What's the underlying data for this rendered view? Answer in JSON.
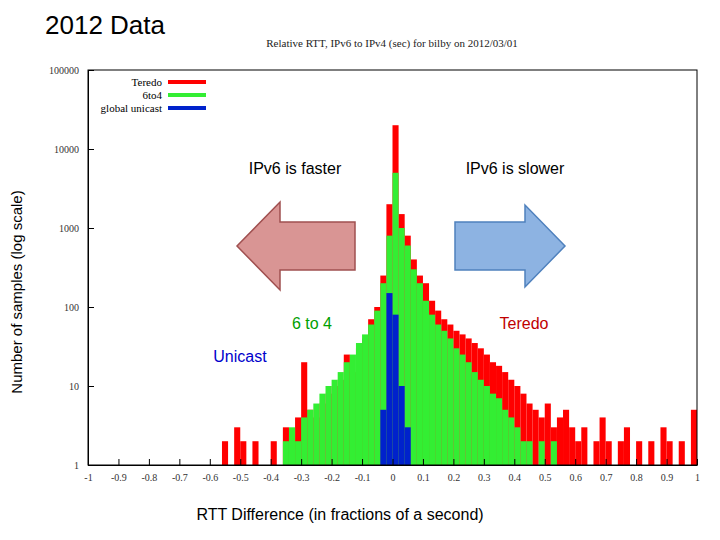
{
  "chart_data": {
    "type": "histogram",
    "title": "2012 Data",
    "subtitle": "Relative RTT, IPv6 to IPv4 (sec) for bilby on 2012/03/01",
    "x_label": "RTT Difference (in fractions of a second)",
    "y_label": "Number of samples (log scale)",
    "annotations": [
      "IPv6 is faster",
      "IPv6 is slower",
      "6 to 4",
      "Teredo",
      "Unicast"
    ],
    "log": "y",
    "grid": false,
    "legend": "top-left",
    "xlim": [
      -1,
      1
    ],
    "xticks": [
      -1,
      -0.9,
      -0.8,
      -0.7,
      -0.6,
      -0.5,
      -0.4,
      -0.3,
      -0.2,
      -0.1,
      0,
      0.1,
      0.2,
      0.3,
      0.4,
      0.5,
      0.6,
      0.7,
      0.8,
      0.9,
      1
    ],
    "ylim": [
      1,
      100000
    ],
    "yticks": [
      1,
      10,
      100,
      1000,
      10000,
      100000
    ],
    "bins": [
      -1,
      -0.98,
      -0.96,
      -0.94,
      -0.92,
      -0.9,
      -0.88,
      -0.86,
      -0.84,
      -0.82,
      -0.8,
      -0.78,
      -0.76,
      -0.74,
      -0.72,
      -0.7,
      -0.68,
      -0.66,
      -0.64,
      -0.62,
      -0.6,
      -0.58,
      -0.56,
      -0.54,
      -0.52,
      -0.5,
      -0.48,
      -0.46,
      -0.44,
      -0.42,
      -0.4,
      -0.38,
      -0.36,
      -0.34,
      -0.32,
      -0.3,
      -0.28,
      -0.26,
      -0.24,
      -0.22,
      -0.2,
      -0.18,
      -0.16,
      -0.14,
      -0.12,
      -0.1,
      -0.08,
      -0.06,
      -0.04,
      -0.02,
      0,
      0.02,
      0.04,
      0.06,
      0.08,
      0.1,
      0.12,
      0.14,
      0.16,
      0.18,
      0.2,
      0.22,
      0.24,
      0.26,
      0.28,
      0.3,
      0.32,
      0.34,
      0.36,
      0.38,
      0.4,
      0.42,
      0.44,
      0.46,
      0.48,
      0.5,
      0.52,
      0.54,
      0.56,
      0.58,
      0.6,
      0.62,
      0.64,
      0.66,
      0.68,
      0.7,
      0.72,
      0.74,
      0.76,
      0.78,
      0.8,
      0.82,
      0.84,
      0.86,
      0.88,
      0.9,
      0.92,
      0.94,
      0.96,
      0.98,
      1
    ],
    "series": [
      {
        "name": "Teredo",
        "color": "#ff0000",
        "values": [
          null,
          null,
          null,
          null,
          null,
          null,
          null,
          null,
          null,
          null,
          null,
          null,
          null,
          null,
          null,
          null,
          null,
          null,
          null,
          null,
          null,
          null,
          2,
          null,
          3,
          2,
          null,
          2,
          null,
          null,
          2,
          null,
          3,
          2,
          4,
          20,
          5,
          4,
          6,
          8,
          10,
          12,
          25,
          15,
          30,
          40,
          70,
          100,
          250,
          2000,
          20000,
          1500,
          800,
          400,
          250,
          200,
          120,
          90,
          70,
          60,
          50,
          45,
          40,
          35,
          30,
          25,
          20,
          18,
          15,
          12,
          10,
          8,
          6,
          5,
          4,
          6,
          3,
          4,
          5,
          3,
          2,
          3,
          null,
          2,
          4,
          2,
          null,
          2,
          3,
          null,
          2,
          null,
          2,
          null,
          3,
          2,
          null,
          2,
          null,
          5
        ]
      },
      {
        "name": "6to4",
        "color": "#33ee33",
        "values": [
          null,
          null,
          null,
          null,
          null,
          null,
          null,
          null,
          null,
          null,
          null,
          null,
          null,
          null,
          null,
          null,
          null,
          null,
          null,
          null,
          null,
          null,
          null,
          null,
          null,
          null,
          null,
          null,
          null,
          null,
          null,
          null,
          2,
          3,
          2,
          4,
          5,
          6,
          8,
          10,
          12,
          15,
          20,
          25,
          35,
          45,
          60,
          90,
          200,
          800,
          5000,
          1000,
          600,
          300,
          200,
          120,
          80,
          60,
          50,
          40,
          30,
          25,
          20,
          15,
          12,
          10,
          8,
          7,
          5,
          4,
          3,
          2,
          2,
          null,
          2,
          null,
          2,
          null,
          null,
          null,
          null,
          null,
          null,
          null,
          null,
          null,
          null,
          null,
          null,
          null,
          null,
          null,
          null,
          null,
          null,
          null,
          null,
          null,
          null,
          null
        ]
      },
      {
        "name": "global unicast",
        "color": "#0022cc",
        "values": [
          null,
          null,
          null,
          null,
          null,
          null,
          null,
          null,
          null,
          null,
          null,
          null,
          null,
          null,
          null,
          null,
          null,
          null,
          null,
          null,
          null,
          null,
          null,
          null,
          null,
          null,
          null,
          null,
          null,
          null,
          null,
          null,
          null,
          null,
          null,
          null,
          null,
          null,
          null,
          null,
          null,
          null,
          null,
          null,
          null,
          null,
          null,
          null,
          5,
          150,
          80,
          10,
          3,
          null,
          null,
          null,
          null,
          null,
          null,
          null,
          null,
          null,
          null,
          null,
          null,
          null,
          null,
          null,
          null,
          null,
          null,
          null,
          null,
          null,
          null,
          null,
          null,
          null,
          null,
          null,
          null,
          null,
          null,
          null,
          null,
          null,
          null,
          null,
          null,
          null,
          null,
          null,
          null,
          null,
          null,
          null,
          null,
          null,
          null,
          null
        ]
      }
    ]
  }
}
